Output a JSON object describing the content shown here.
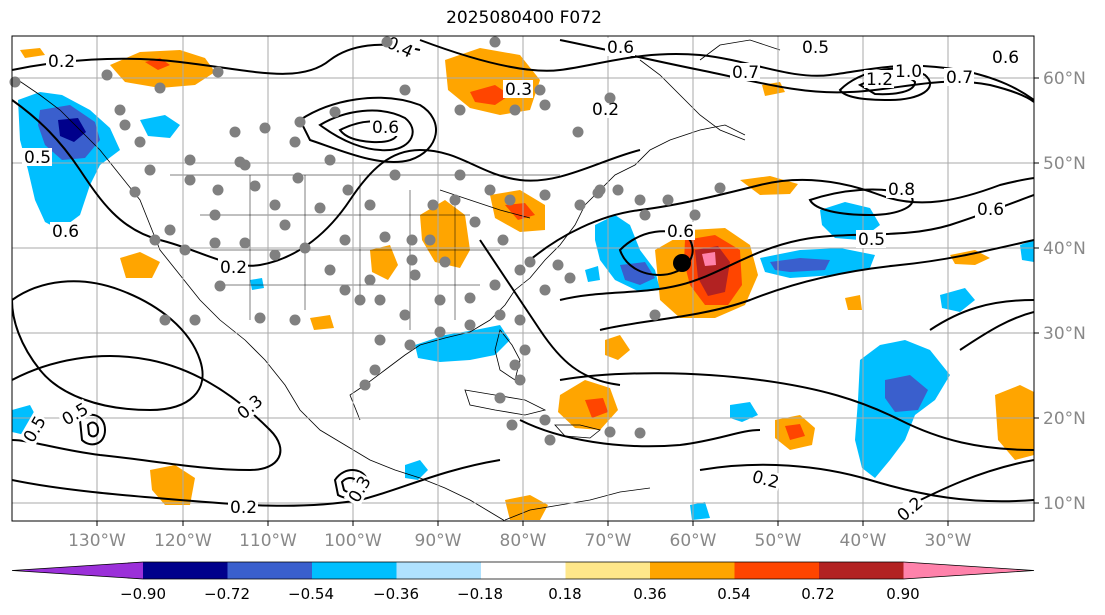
{
  "title": "2025080400 F072",
  "lon_labels": [
    "130°W",
    "120°W",
    "110°W",
    "100°W",
    "90°W",
    "80°W",
    "70°W",
    "60°W",
    "50°W",
    "40°W",
    "30°W"
  ],
  "lat_labels": [
    "60°N",
    "50°N",
    "40°N",
    "30°N",
    "20°N",
    "10°N"
  ],
  "colorbar": {
    "ticks": [
      "−0.90",
      "−0.72",
      "−0.54",
      "−0.36",
      "−0.18",
      "0.18",
      "0.36",
      "0.54",
      "0.72",
      "0.90"
    ],
    "colors": [
      "#9b30d9",
      "#00008b",
      "#3a5fcd",
      "#00bfff",
      "#b0e2ff",
      "#ffffff",
      "#ffe78a",
      "#ffa500",
      "#ff4500",
      "#b22222",
      "#ff82ab"
    ]
  },
  "contour_labels": [
    "0.2",
    "0.4",
    "0.5",
    "0.6",
    "0.7",
    "1.2",
    "1.0",
    "0.7",
    "0.6",
    "0.3",
    "0.2",
    "0.6",
    "0.6",
    "0.5",
    "0.8",
    "0.6",
    "0.5",
    "0.2",
    "0.6",
    "0.5",
    "0.5",
    "0.3",
    "0.3",
    "0.2",
    "0.2",
    "0.2"
  ],
  "colors": {
    "contour": "#000000",
    "grid": "#aaaaaa",
    "tick_text": "#888888",
    "station": "#808080",
    "cyclone_center": "#000000"
  }
}
